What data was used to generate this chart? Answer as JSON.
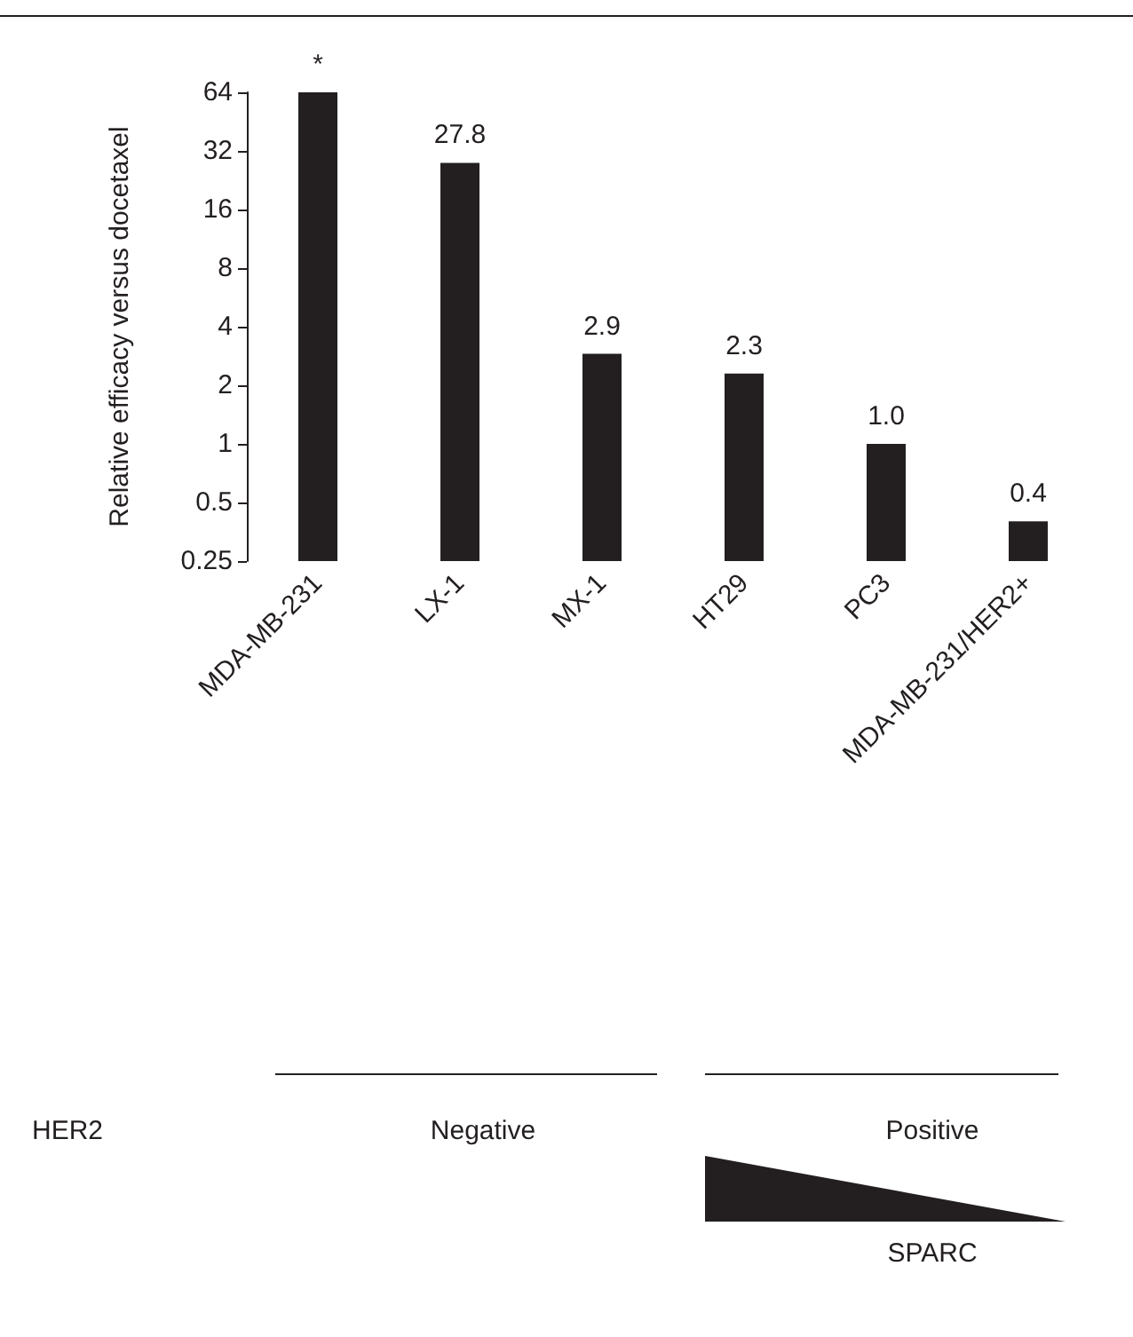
{
  "chart_data": {
    "type": "bar",
    "ylabel": "Relative efficacy versus docetaxel",
    "categories": [
      "MDA-MB-231",
      "LX-1",
      "MX-1",
      "HT29",
      "PC3",
      "MDA-MB-231/HER2+"
    ],
    "values": [
      64,
      27.8,
      2.9,
      2.3,
      1.0,
      0.4
    ],
    "value_labels": [
      "*",
      "27.8",
      "2.9",
      "2.3",
      "1.0",
      "0.4"
    ],
    "color": "#231f20",
    "log": "y",
    "ylim": [
      0.25,
      64
    ],
    "yticks": [
      0.25,
      0.5,
      1,
      2,
      4,
      8,
      16,
      32,
      64
    ],
    "grid": false,
    "annotations": [
      "HER2",
      "Negative",
      "Positive",
      "SPARC"
    ]
  }
}
